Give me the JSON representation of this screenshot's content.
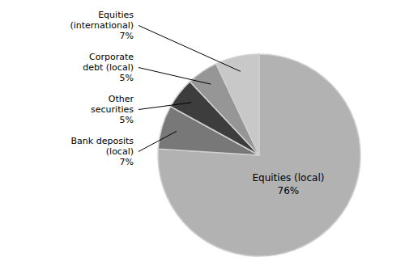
{
  "chart_data": {
    "type": "pie",
    "categories": [
      "Equities (local)",
      "Bank deposits\n(local)",
      "Other\nsecurities",
      "Corporate\ndebt (local)",
      "Equities\n(international)"
    ],
    "values": [
      76,
      7,
      5,
      5,
      7
    ],
    "value_labels": [
      "76%",
      "7%",
      "5%",
      "5%",
      "7%"
    ],
    "colors": [
      "#b2b2b2",
      "#787878",
      "#3d3d3d",
      "#969696",
      "#c8c8c8"
    ],
    "data_labels": true
  }
}
